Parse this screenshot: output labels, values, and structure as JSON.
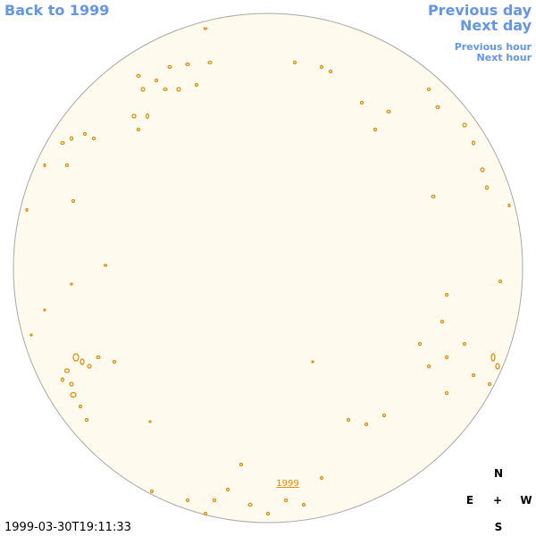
{
  "nav": {
    "back": "Back to 1999",
    "previous_day": "Previous day",
    "next_day": "Next day",
    "previous_hour": "Previous hour",
    "next_hour": "Next hour"
  },
  "image": {
    "year_link": "1999",
    "timestamp": "1999-03-30T19:11:33"
  },
  "compass": {
    "north": "N",
    "east": "E",
    "center": "+",
    "west": "W",
    "south": "S"
  }
}
